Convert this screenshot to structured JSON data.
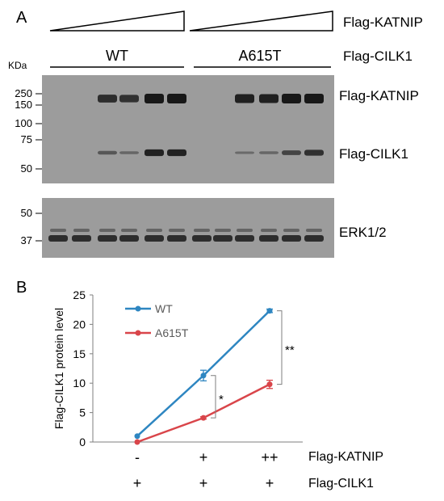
{
  "panel_a": {
    "label": "A",
    "treatment_label": "Flag-KATNIP",
    "genotype_label": "Flag-CILK1",
    "groups": [
      "WT",
      "A615T"
    ],
    "kda_label": "KDa",
    "upper_blot": {
      "markers": [
        "250",
        "150",
        "100",
        "75",
        "50"
      ],
      "bands": [
        "Flag-KATNIP",
        "Flag-CILK1"
      ]
    },
    "lower_blot": {
      "markers": [
        "50",
        "37"
      ],
      "bands": [
        "ERK1/2"
      ]
    }
  },
  "panel_b": {
    "label": "B",
    "row_labels": {
      "treatment": "Flag-KATNIP",
      "genotype": "Flag-CILK1"
    },
    "katnip_row": [
      "-",
      "+",
      "++"
    ],
    "cilk1_row": [
      "+",
      "+",
      "+"
    ]
  },
  "chart_data": {
    "type": "line",
    "ylabel": "Flag-CILK1 protein level",
    "xlabel": "",
    "ylim": [
      0,
      25
    ],
    "yticks": [
      "0",
      "5",
      "10",
      "15",
      "20",
      "25"
    ],
    "x": [
      1,
      2,
      3
    ],
    "series": [
      {
        "name": "WT",
        "color": "#2e86c1",
        "values": [
          1.0,
          11.3,
          22.3
        ],
        "errors": [
          0.0,
          0.9,
          0.3
        ]
      },
      {
        "name": "A615T",
        "color": "#d9454a",
        "values": [
          0.0,
          4.1,
          9.8
        ],
        "errors": [
          0.0,
          0.2,
          0.7
        ]
      }
    ],
    "legend": "top-left",
    "grid": false,
    "significance": [
      "*",
      "**"
    ]
  }
}
